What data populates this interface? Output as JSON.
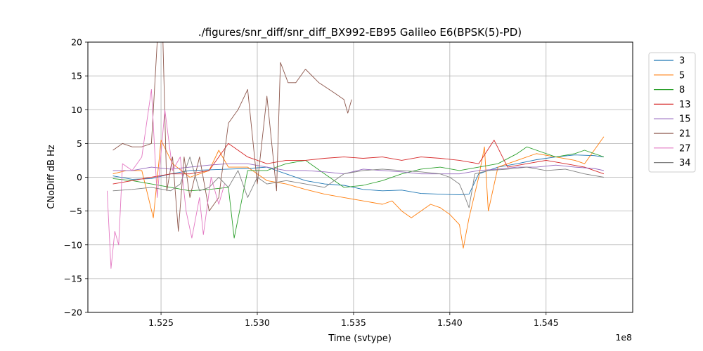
{
  "chart_data": {
    "type": "line",
    "title": "./figures/snr_diff/snr_diff_BX992-EB95 Galileo  E6(BPSK(5)-PD)",
    "xlabel": "Time (svtype)",
    "ylabel": "CNoDiff dB Hz",
    "x_offset_label": "1e8",
    "xlim": [
      152120000,
      154950000
    ],
    "ylim": [
      -20,
      20
    ],
    "x_ticks": [
      152500000,
      153000000,
      153500000,
      154000000,
      154500000
    ],
    "x_tick_labels": [
      "1.525",
      "1.530",
      "1.535",
      "1.540",
      "1.545"
    ],
    "y_ticks": [
      -20,
      -15,
      -10,
      -5,
      0,
      5,
      10,
      15,
      20
    ],
    "y_tick_labels": [
      "−20",
      "−15",
      "−10",
      "−5",
      "0",
      "5",
      "10",
      "15",
      "20"
    ],
    "grid": true,
    "legend_position": "upper-right-outside",
    "series": [
      {
        "name": "3",
        "color": "#1f77b4",
        "points": [
          [
            152250000,
            0.2
          ],
          [
            152350000,
            -0.3
          ],
          [
            152450000,
            -0.2
          ],
          [
            152550000,
            0.5
          ],
          [
            152650000,
            1.0
          ],
          [
            152750000,
            1.1
          ],
          [
            152850000,
            1.2
          ],
          [
            152950000,
            1.3
          ],
          [
            153050000,
            1.5
          ],
          [
            153150000,
            0.5
          ],
          [
            153250000,
            -0.5
          ],
          [
            153350000,
            -1.0
          ],
          [
            153450000,
            -1.2
          ],
          [
            153550000,
            -1.8
          ],
          [
            153650000,
            -2.0
          ],
          [
            153750000,
            -1.9
          ],
          [
            153850000,
            -2.4
          ],
          [
            153950000,
            -2.5
          ],
          [
            154050000,
            -2.6
          ],
          [
            154100000,
            -2.5
          ],
          [
            154150000,
            0.5
          ],
          [
            154250000,
            1.5
          ],
          [
            154350000,
            2.0
          ],
          [
            154450000,
            2.6
          ],
          [
            154550000,
            3.0
          ],
          [
            154650000,
            3.3
          ],
          [
            154750000,
            3.2
          ],
          [
            154800000,
            3.0
          ]
        ]
      },
      {
        "name": "5",
        "color": "#ff7f0e",
        "points": [
          [
            152250000,
            0.5
          ],
          [
            152320000,
            1.0
          ],
          [
            152400000,
            1.0
          ],
          [
            152460000,
            -6.0
          ],
          [
            152500000,
            5.5
          ],
          [
            152560000,
            2.0
          ],
          [
            152650000,
            0.0
          ],
          [
            152750000,
            1.0
          ],
          [
            152800000,
            4.0
          ],
          [
            152850000,
            1.5
          ],
          [
            152950000,
            1.5
          ],
          [
            153050000,
            -0.5
          ],
          [
            153150000,
            -1.0
          ],
          [
            153250000,
            -1.8
          ],
          [
            153350000,
            -2.5
          ],
          [
            153450000,
            -3.0
          ],
          [
            153550000,
            -3.5
          ],
          [
            153650000,
            -4.0
          ],
          [
            153700000,
            -3.5
          ],
          [
            153750000,
            -5.0
          ],
          [
            153800000,
            -6.0
          ],
          [
            153850000,
            -5.0
          ],
          [
            153900000,
            -4.0
          ],
          [
            153950000,
            -4.5
          ],
          [
            154000000,
            -5.5
          ],
          [
            154050000,
            -7.0
          ],
          [
            154070000,
            -10.5
          ],
          [
            154100000,
            -6.0
          ],
          [
            154150000,
            0.0
          ],
          [
            154180000,
            4.5
          ],
          [
            154200000,
            -5.0
          ],
          [
            154250000,
            1.5
          ],
          [
            154350000,
            2.5
          ],
          [
            154450000,
            3.5
          ],
          [
            154550000,
            3.0
          ],
          [
            154650000,
            2.5
          ],
          [
            154700000,
            2.0
          ],
          [
            154750000,
            4.0
          ],
          [
            154800000,
            6.0
          ]
        ]
      },
      {
        "name": "8",
        "color": "#2ca02c",
        "points": [
          [
            152250000,
            -0.2
          ],
          [
            152350000,
            -0.5
          ],
          [
            152450000,
            -1.0
          ],
          [
            152550000,
            -1.5
          ],
          [
            152650000,
            -2.0
          ],
          [
            152750000,
            -1.8
          ],
          [
            152850000,
            -1.5
          ],
          [
            152880000,
            -9.0
          ],
          [
            152950000,
            1.0
          ],
          [
            153050000,
            1.0
          ],
          [
            153150000,
            2.0
          ],
          [
            153250000,
            2.5
          ],
          [
            153350000,
            0.5
          ],
          [
            153450000,
            -1.5
          ],
          [
            153550000,
            -1.2
          ],
          [
            153650000,
            -0.5
          ],
          [
            153750000,
            0.5
          ],
          [
            153850000,
            1.2
          ],
          [
            153950000,
            1.5
          ],
          [
            154050000,
            1.0
          ],
          [
            154150000,
            1.5
          ],
          [
            154250000,
            2.0
          ],
          [
            154350000,
            3.5
          ],
          [
            154400000,
            4.5
          ],
          [
            154450000,
            4.0
          ],
          [
            154550000,
            3.0
          ],
          [
            154650000,
            3.5
          ],
          [
            154700000,
            4.0
          ],
          [
            154800000,
            3.0
          ]
        ]
      },
      {
        "name": "13",
        "color": "#d62728",
        "points": [
          [
            152250000,
            -1.0
          ],
          [
            152350000,
            -0.5
          ],
          [
            152450000,
            0.0
          ],
          [
            152550000,
            0.5
          ],
          [
            152650000,
            0.5
          ],
          [
            152750000,
            1.0
          ],
          [
            152850000,
            5.0
          ],
          [
            152950000,
            3.0
          ],
          [
            153050000,
            2.0
          ],
          [
            153150000,
            2.5
          ],
          [
            153250000,
            2.5
          ],
          [
            153350000,
            2.8
          ],
          [
            153450000,
            3.0
          ],
          [
            153550000,
            2.8
          ],
          [
            153650000,
            3.0
          ],
          [
            153750000,
            2.5
          ],
          [
            153850000,
            3.0
          ],
          [
            153950000,
            2.8
          ],
          [
            154050000,
            2.5
          ],
          [
            154150000,
            2.0
          ],
          [
            154230000,
            5.5
          ],
          [
            154300000,
            1.5
          ],
          [
            154400000,
            2.0
          ],
          [
            154500000,
            2.5
          ],
          [
            154600000,
            2.0
          ],
          [
            154700000,
            1.5
          ],
          [
            154800000,
            0.5
          ]
        ]
      },
      {
        "name": "15",
        "color": "#9467bd",
        "points": [
          [
            152250000,
            1.0
          ],
          [
            152350000,
            1.0
          ],
          [
            152450000,
            1.5
          ],
          [
            152550000,
            1.2
          ],
          [
            152650000,
            1.5
          ],
          [
            152750000,
            1.8
          ],
          [
            152850000,
            2.0
          ],
          [
            152950000,
            2.0
          ],
          [
            153050000,
            1.5
          ],
          [
            153150000,
            1.0
          ],
          [
            153250000,
            1.0
          ],
          [
            153350000,
            0.8
          ],
          [
            153450000,
            0.5
          ],
          [
            153550000,
            1.2
          ],
          [
            153650000,
            1.0
          ],
          [
            153750000,
            0.8
          ],
          [
            153850000,
            0.5
          ],
          [
            153950000,
            0.5
          ],
          [
            154050000,
            0.5
          ],
          [
            154150000,
            1.0
          ],
          [
            154250000,
            1.2
          ],
          [
            154350000,
            1.5
          ],
          [
            154450000,
            1.5
          ],
          [
            154550000,
            1.8
          ],
          [
            154650000,
            1.5
          ],
          [
            154750000,
            1.3
          ],
          [
            154800000,
            1.0
          ]
        ]
      },
      {
        "name": "21",
        "color": "#8c564b",
        "points": [
          [
            152250000,
            4.0
          ],
          [
            152300000,
            5.0
          ],
          [
            152350000,
            4.5
          ],
          [
            152400000,
            4.5
          ],
          [
            152450000,
            5.0
          ],
          [
            152480000,
            20.0
          ],
          [
            152510000,
            20.0
          ],
          [
            152530000,
            -2.0
          ],
          [
            152560000,
            3.0
          ],
          [
            152590000,
            -8.0
          ],
          [
            152620000,
            3.0
          ],
          [
            152650000,
            -3.0
          ],
          [
            152700000,
            3.0
          ],
          [
            152750000,
            -5.0
          ],
          [
            152800000,
            -3.0
          ],
          [
            152850000,
            8.0
          ],
          [
            152900000,
            10.0
          ],
          [
            152950000,
            13.0
          ],
          [
            153000000,
            -1.0
          ],
          [
            153050000,
            12.0
          ],
          [
            153100000,
            -2.0
          ],
          [
            153120000,
            17.0
          ],
          [
            153160000,
            14.0
          ],
          [
            153200000,
            14.0
          ],
          [
            153250000,
            16.0
          ],
          [
            153320000,
            14.0
          ],
          [
            153400000,
            12.5
          ],
          [
            153450000,
            11.5
          ],
          [
            153470000,
            9.5
          ],
          [
            153490000,
            11.5
          ]
        ]
      },
      {
        "name": "27",
        "color": "#e377c2",
        "points": [
          [
            152220000,
            -2.0
          ],
          [
            152240000,
            -13.5
          ],
          [
            152260000,
            -8.0
          ],
          [
            152280000,
            -10.0
          ],
          [
            152300000,
            2.0
          ],
          [
            152350000,
            1.0
          ],
          [
            152400000,
            3.0
          ],
          [
            152450000,
            13.0
          ],
          [
            152480000,
            -3.0
          ],
          [
            152520000,
            10.0
          ],
          [
            152560000,
            1.0
          ],
          [
            152600000,
            3.0
          ],
          [
            152630000,
            -5.0
          ],
          [
            152660000,
            -9.0
          ],
          [
            152700000,
            -3.0
          ],
          [
            152720000,
            -8.5
          ],
          [
            152760000,
            0.0
          ],
          [
            152800000,
            -4.0
          ],
          [
            152830000,
            -1.0
          ]
        ]
      },
      {
        "name": "34",
        "color": "#7f7f7f",
        "points": [
          [
            152250000,
            -2.0
          ],
          [
            152350000,
            -1.8
          ],
          [
            152450000,
            -1.5
          ],
          [
            152550000,
            -2.0
          ],
          [
            152600000,
            -1.0
          ],
          [
            152650000,
            3.0
          ],
          [
            152700000,
            -2.0
          ],
          [
            152750000,
            -1.5
          ],
          [
            152800000,
            0.0
          ],
          [
            152850000,
            -1.5
          ],
          [
            152900000,
            1.0
          ],
          [
            152950000,
            -3.0
          ],
          [
            153000000,
            0.0
          ],
          [
            153050000,
            -1.0
          ],
          [
            153150000,
            -0.5
          ],
          [
            153250000,
            -1.0
          ],
          [
            153350000,
            -1.5
          ],
          [
            153450000,
            0.5
          ],
          [
            153550000,
            1.0
          ],
          [
            153650000,
            1.2
          ],
          [
            153750000,
            1.0
          ],
          [
            153850000,
            0.8
          ],
          [
            153950000,
            0.5
          ],
          [
            154000000,
            0.0
          ],
          [
            154050000,
            -1.0
          ],
          [
            154080000,
            -3.0
          ],
          [
            154100000,
            -4.5
          ],
          [
            154130000,
            0.5
          ],
          [
            154200000,
            1.0
          ],
          [
            154300000,
            1.2
          ],
          [
            154400000,
            1.5
          ],
          [
            154500000,
            1.0
          ],
          [
            154600000,
            1.2
          ],
          [
            154700000,
            0.5
          ],
          [
            154800000,
            0.0
          ]
        ]
      }
    ]
  }
}
